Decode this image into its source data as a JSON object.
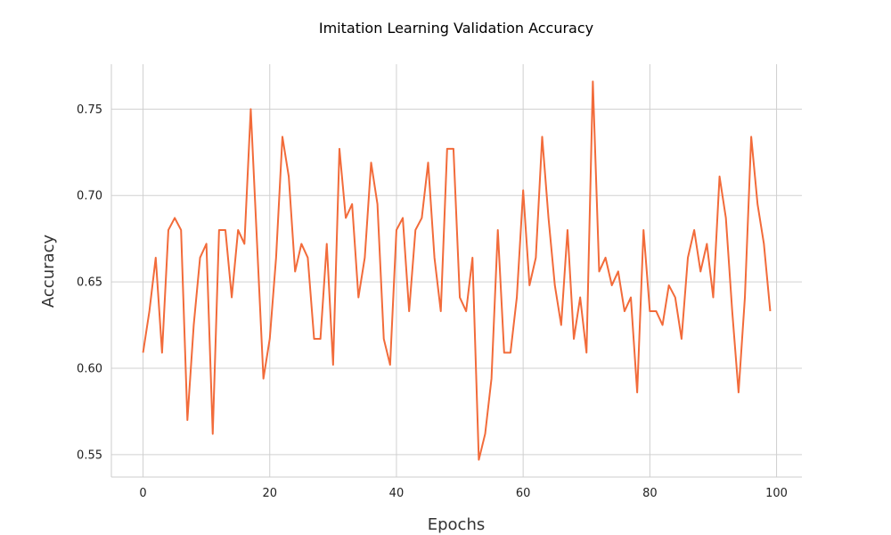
{
  "chart_data": {
    "type": "line",
    "title": "Imitation Learning Validation Accuracy",
    "xlabel": "Epochs",
    "ylabel": "Accuracy",
    "xlim": [
      -5,
      104
    ],
    "ylim": [
      0.537,
      0.776
    ],
    "xticks": [
      0,
      20,
      40,
      60,
      80,
      100
    ],
    "xtick_labels": [
      "0",
      "20",
      "40",
      "60",
      "80",
      "100"
    ],
    "yticks": [
      0.55,
      0.6,
      0.65,
      0.7,
      0.75
    ],
    "ytick_labels": [
      "0.55",
      "0.60",
      "0.65",
      "0.70",
      "0.75"
    ],
    "grid": true,
    "colors": {
      "line": "#f26b3a",
      "grid": "#d0d0d0",
      "spine": "#cccccc"
    },
    "series": [
      {
        "x": [
          0,
          1,
          2,
          3,
          4,
          5,
          6,
          7,
          8,
          9,
          10,
          11,
          12,
          13,
          14,
          15,
          16,
          17,
          18,
          19,
          20,
          21,
          22,
          23,
          24,
          25,
          26,
          27,
          28,
          29,
          30,
          31,
          32,
          33,
          34,
          35,
          36,
          37,
          38,
          39,
          40,
          41,
          42,
          43,
          44,
          45,
          46,
          47,
          48,
          49,
          50,
          51,
          52,
          53,
          54,
          55,
          56,
          57,
          58,
          59,
          60,
          61,
          62,
          63,
          64,
          65,
          66,
          67,
          68,
          69,
          70,
          71,
          72,
          73,
          74,
          75,
          76,
          77,
          78,
          79,
          80,
          81,
          82,
          83,
          84,
          85,
          86,
          87,
          88,
          89,
          90,
          91,
          92,
          93,
          94,
          95,
          96,
          97,
          98,
          99
        ],
        "values": [
          0.609,
          0.633,
          0.664,
          0.609,
          0.68,
          0.687,
          0.68,
          0.57,
          0.625,
          0.664,
          0.672,
          0.562,
          0.68,
          0.68,
          0.641,
          0.68,
          0.672,
          0.75,
          0.672,
          0.594,
          0.617,
          0.664,
          0.734,
          0.711,
          0.656,
          0.672,
          0.664,
          0.617,
          0.617,
          0.672,
          0.602,
          0.727,
          0.687,
          0.695,
          0.641,
          0.664,
          0.719,
          0.695,
          0.617,
          0.602,
          0.68,
          0.687,
          0.633,
          0.68,
          0.687,
          0.719,
          0.664,
          0.633,
          0.727,
          0.727,
          0.641,
          0.633,
          0.664,
          0.547,
          0.562,
          0.594,
          0.68,
          0.609,
          0.609,
          0.641,
          0.703,
          0.648,
          0.664,
          0.734,
          0.687,
          0.648,
          0.625,
          0.68,
          0.617,
          0.641,
          0.609,
          0.766,
          0.656,
          0.664,
          0.648,
          0.656,
          0.633,
          0.641,
          0.586,
          0.68,
          0.633,
          0.633,
          0.625,
          0.648,
          0.641,
          0.617,
          0.664,
          0.68,
          0.656,
          0.672,
          0.641,
          0.711,
          0.687,
          0.633,
          0.586,
          0.641,
          0.734,
          0.695,
          0.672,
          0.633
        ]
      }
    ]
  }
}
